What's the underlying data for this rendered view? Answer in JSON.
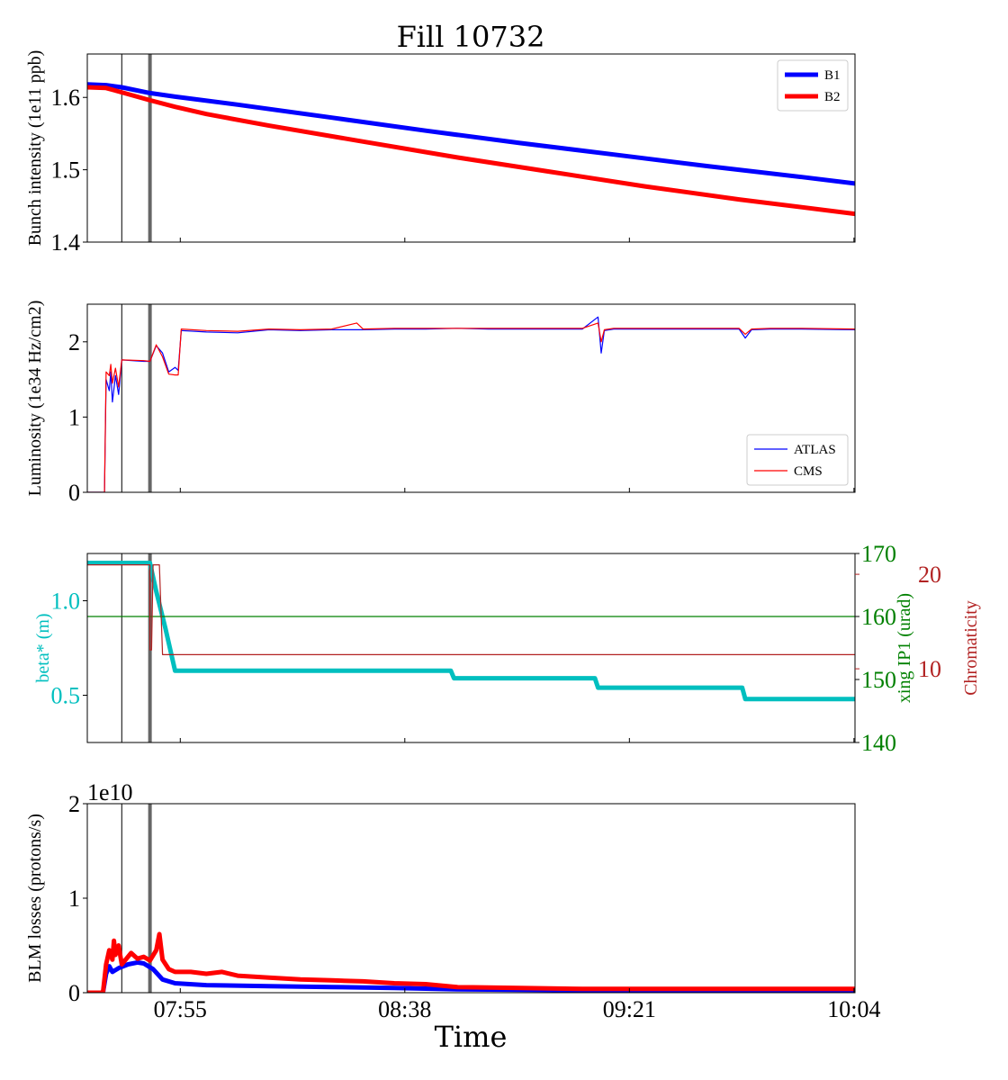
{
  "chart_data": {
    "type": "line",
    "title": "Fill 10732",
    "xlabel": "Time",
    "x_ticks": [
      {
        "t": 7.9167,
        "label": "07:55"
      },
      {
        "t": 8.6333,
        "label": "08:38"
      },
      {
        "t": 9.35,
        "label": "09:21"
      },
      {
        "t": 10.0667,
        "label": "10:04"
      }
    ],
    "xlim": [
      7.62,
      10.07
    ],
    "markers": [
      {
        "t": 7.73,
        "style": "thin-black"
      },
      {
        "t": 7.82,
        "style": "thick-grey"
      }
    ],
    "panels": [
      {
        "ylabel": "Bunch intensity (1e11 ppb)",
        "ylim": [
          1.4,
          1.66
        ],
        "yticks": [
          "1.4",
          "1.5",
          "1.6"
        ],
        "ytick_values": [
          1.4,
          1.5,
          1.6
        ],
        "legend": "top-right",
        "series": [
          {
            "name": "B1",
            "color": "#0000ff",
            "points": [
              [
                7.62,
                1.618
              ],
              [
                7.68,
                1.617
              ],
              [
                7.73,
                1.614
              ],
              [
                7.82,
                1.606
              ],
              [
                7.9,
                1.601
              ],
              [
                8.1,
                1.59
              ],
              [
                8.4,
                1.572
              ],
              [
                8.7,
                1.554
              ],
              [
                9.0,
                1.537
              ],
              [
                9.3,
                1.521
              ],
              [
                9.6,
                1.505
              ],
              [
                9.9,
                1.49
              ],
              [
                10.07,
                1.481
              ]
            ]
          },
          {
            "name": "B2",
            "color": "#ff0000",
            "points": [
              [
                7.62,
                1.614
              ],
              [
                7.68,
                1.613
              ],
              [
                7.73,
                1.607
              ],
              [
                7.82,
                1.596
              ],
              [
                7.9,
                1.587
              ],
              [
                8.0,
                1.577
              ],
              [
                8.2,
                1.561
              ],
              [
                8.5,
                1.539
              ],
              [
                8.8,
                1.517
              ],
              [
                9.1,
                1.497
              ],
              [
                9.4,
                1.477
              ],
              [
                9.7,
                1.459
              ],
              [
                10.07,
                1.439
              ]
            ]
          }
        ]
      },
      {
        "ylabel": "Luminosity (1e34 Hz/cm2)",
        "ylim": [
          0,
          2.5
        ],
        "yticks": [
          "0",
          "1",
          "2"
        ],
        "ytick_values": [
          0,
          1,
          2
        ],
        "legend": "bottom-right",
        "series": [
          {
            "name": "ATLAS",
            "color": "#0000ff",
            "points": [
              [
                7.62,
                0
              ],
              [
                7.675,
                0
              ],
              [
                7.68,
                1.5
              ],
              [
                7.69,
                1.35
              ],
              [
                7.695,
                1.6
              ],
              [
                7.7,
                1.2
              ],
              [
                7.71,
                1.55
              ],
              [
                7.72,
                1.3
              ],
              [
                7.73,
                1.76
              ],
              [
                7.8,
                1.74
              ],
              [
                7.82,
                1.74
              ],
              [
                7.84,
                1.95
              ],
              [
                7.86,
                1.85
              ],
              [
                7.88,
                1.6
              ],
              [
                7.9,
                1.66
              ],
              [
                7.91,
                1.62
              ],
              [
                7.92,
                2.15
              ],
              [
                8.0,
                2.13
              ],
              [
                8.1,
                2.12
              ],
              [
                8.2,
                2.16
              ],
              [
                8.3,
                2.15
              ],
              [
                8.4,
                2.16
              ],
              [
                8.5,
                2.16
              ],
              [
                8.6,
                2.17
              ],
              [
                8.7,
                2.17
              ],
              [
                8.8,
                2.18
              ],
              [
                8.9,
                2.17
              ],
              [
                9.0,
                2.17
              ],
              [
                9.1,
                2.17
              ],
              [
                9.2,
                2.17
              ],
              [
                9.25,
                2.33
              ],
              [
                9.26,
                1.85
              ],
              [
                9.27,
                2.15
              ],
              [
                9.3,
                2.17
              ],
              [
                9.4,
                2.17
              ],
              [
                9.5,
                2.17
              ],
              [
                9.6,
                2.17
              ],
              [
                9.7,
                2.17
              ],
              [
                9.72,
                2.05
              ],
              [
                9.74,
                2.16
              ],
              [
                9.8,
                2.17
              ],
              [
                9.9,
                2.17
              ],
              [
                10.07,
                2.16
              ]
            ]
          },
          {
            "name": "CMS",
            "color": "#ff0000",
            "points": [
              [
                7.62,
                0
              ],
              [
                7.675,
                0
              ],
              [
                7.68,
                1.6
              ],
              [
                7.69,
                1.55
              ],
              [
                7.695,
                1.7
              ],
              [
                7.7,
                1.45
              ],
              [
                7.71,
                1.65
              ],
              [
                7.72,
                1.4
              ],
              [
                7.73,
                1.76
              ],
              [
                7.8,
                1.75
              ],
              [
                7.82,
                1.74
              ],
              [
                7.84,
                1.96
              ],
              [
                7.86,
                1.8
              ],
              [
                7.88,
                1.57
              ],
              [
                7.9,
                1.56
              ],
              [
                7.91,
                1.56
              ],
              [
                7.92,
                2.17
              ],
              [
                8.0,
                2.15
              ],
              [
                8.1,
                2.14
              ],
              [
                8.2,
                2.17
              ],
              [
                8.3,
                2.16
              ],
              [
                8.4,
                2.17
              ],
              [
                8.48,
                2.25
              ],
              [
                8.5,
                2.17
              ],
              [
                8.6,
                2.18
              ],
              [
                8.7,
                2.18
              ],
              [
                8.8,
                2.18
              ],
              [
                8.9,
                2.18
              ],
              [
                9.0,
                2.18
              ],
              [
                9.1,
                2.18
              ],
              [
                9.2,
                2.18
              ],
              [
                9.25,
                2.25
              ],
              [
                9.26,
                2.0
              ],
              [
                9.27,
                2.16
              ],
              [
                9.3,
                2.18
              ],
              [
                9.4,
                2.18
              ],
              [
                9.5,
                2.18
              ],
              [
                9.6,
                2.18
              ],
              [
                9.7,
                2.18
              ],
              [
                9.72,
                2.1
              ],
              [
                9.74,
                2.17
              ],
              [
                9.8,
                2.18
              ],
              [
                9.9,
                2.18
              ],
              [
                10.07,
                2.17
              ]
            ]
          }
        ]
      },
      {
        "ylabel": "beta* (m)",
        "ylim": [
          0.25,
          1.25
        ],
        "yticks": [
          "0.5",
          "1.0"
        ],
        "ytick_values": [
          0.5,
          1.0
        ],
        "y2label": "xing IP1 (urad)",
        "y2lim": [
          140,
          170
        ],
        "y2ticks": [
          "140",
          "150",
          "160",
          "170"
        ],
        "y2tick_values": [
          140,
          150,
          160,
          170
        ],
        "y3label": "Chromaticity",
        "y3ticks": [
          "10",
          "20"
        ],
        "y3tick_values": [
          10,
          20
        ],
        "y3lim": [
          2.2,
          22.2
        ],
        "colors": {
          "beta": "#00bfbf",
          "xing": "#008000",
          "chroma": "#b22222"
        },
        "series": [
          {
            "name": "beta*",
            "color": "#00bfbf",
            "points": [
              [
                7.62,
                1.2
              ],
              [
                7.82,
                1.2
              ],
              [
                7.84,
                1.05
              ],
              [
                7.87,
                0.85
              ],
              [
                7.9,
                0.63
              ],
              [
                8.78,
                0.63
              ],
              [
                8.79,
                0.59
              ],
              [
                9.24,
                0.59
              ],
              [
                9.25,
                0.54
              ],
              [
                9.71,
                0.54
              ],
              [
                9.72,
                0.48
              ],
              [
                10.07,
                0.48
              ]
            ]
          },
          {
            "name": "xing IP1",
            "color": "#008000",
            "axis": "y2",
            "points": [
              [
                7.62,
                160
              ],
              [
                10.07,
                160
              ]
            ]
          },
          {
            "name": "Chromaticity",
            "color": "#b22222",
            "axis": "y3",
            "points": [
              [
                7.62,
                21
              ],
              [
                7.82,
                21
              ],
              [
                7.82,
                12
              ],
              [
                7.825,
                12
              ],
              [
                7.83,
                21
              ],
              [
                7.85,
                21
              ],
              [
                7.86,
                11.5
              ],
              [
                10.07,
                11.5
              ]
            ]
          }
        ]
      },
      {
        "ylabel": "BLM losses (protons/s)",
        "offset_text": "1e10",
        "ylim": [
          0,
          2
        ],
        "yticks": [
          "0",
          "1",
          "2"
        ],
        "ytick_values": [
          0,
          1,
          2
        ],
        "series": [
          {
            "name": "B1",
            "color": "#0000ff",
            "points": [
              [
                7.62,
                0.0
              ],
              [
                7.67,
                0.0
              ],
              [
                7.68,
                0.2
              ],
              [
                7.69,
                0.28
              ],
              [
                7.7,
                0.22
              ],
              [
                7.72,
                0.26
              ],
              [
                7.75,
                0.3
              ],
              [
                7.78,
                0.32
              ],
              [
                7.8,
                0.31
              ],
              [
                7.83,
                0.25
              ],
              [
                7.86,
                0.14
              ],
              [
                7.9,
                0.1
              ],
              [
                8.0,
                0.08
              ],
              [
                8.2,
                0.07
              ],
              [
                8.4,
                0.06
              ],
              [
                8.6,
                0.05
              ],
              [
                8.8,
                0.035
              ],
              [
                9.0,
                0.03
              ],
              [
                9.3,
                0.025
              ],
              [
                9.6,
                0.02
              ],
              [
                10.07,
                0.02
              ]
            ]
          },
          {
            "name": "B2",
            "color": "#ff0000",
            "points": [
              [
                7.62,
                0.0
              ],
              [
                7.67,
                0.0
              ],
              [
                7.68,
                0.3
              ],
              [
                7.69,
                0.45
              ],
              [
                7.7,
                0.35
              ],
              [
                7.705,
                0.55
              ],
              [
                7.71,
                0.4
              ],
              [
                7.72,
                0.5
              ],
              [
                7.73,
                0.3
              ],
              [
                7.76,
                0.42
              ],
              [
                7.78,
                0.36
              ],
              [
                7.8,
                0.38
              ],
              [
                7.82,
                0.34
              ],
              [
                7.84,
                0.45
              ],
              [
                7.85,
                0.62
              ],
              [
                7.86,
                0.35
              ],
              [
                7.88,
                0.25
              ],
              [
                7.9,
                0.22
              ],
              [
                7.95,
                0.22
              ],
              [
                8.0,
                0.2
              ],
              [
                8.05,
                0.22
              ],
              [
                8.1,
                0.18
              ],
              [
                8.2,
                0.16
              ],
              [
                8.3,
                0.14
              ],
              [
                8.4,
                0.13
              ],
              [
                8.5,
                0.12
              ],
              [
                8.6,
                0.1
              ],
              [
                8.7,
                0.09
              ],
              [
                8.8,
                0.06
              ],
              [
                9.0,
                0.05
              ],
              [
                9.2,
                0.04
              ],
              [
                9.4,
                0.04
              ],
              [
                9.6,
                0.04
              ],
              [
                9.8,
                0.04
              ],
              [
                10.07,
                0.04
              ]
            ]
          }
        ]
      }
    ]
  }
}
